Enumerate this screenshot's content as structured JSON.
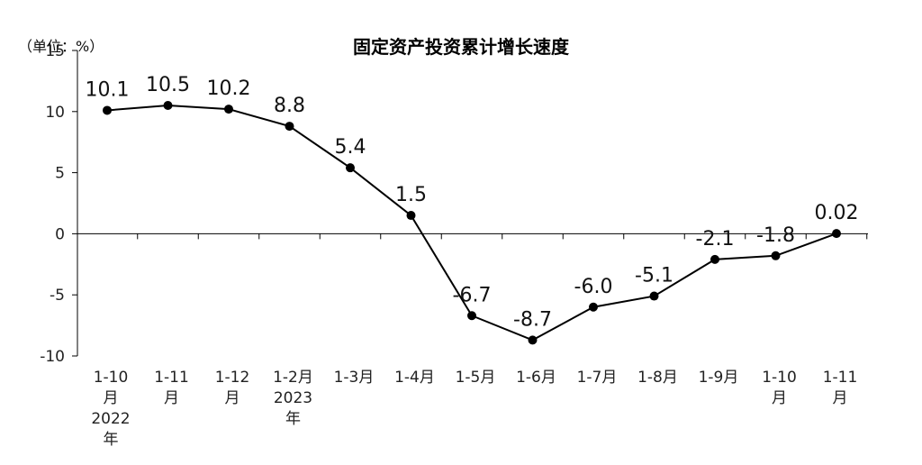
{
  "chart_data": {
    "type": "line",
    "title": "固定资产投资累计增长速度",
    "unit_label": "（单位：%）",
    "xlabel": "",
    "ylabel": "",
    "ylim": [
      -10,
      15
    ],
    "yticks": [
      "15",
      "10",
      "5",
      "0",
      "-5",
      "-10"
    ],
    "ytick_values": [
      15,
      10,
      5,
      0,
      -5,
      -10
    ],
    "grid": false,
    "categories": [
      [
        "1-10",
        "月",
        "2022",
        "年"
      ],
      [
        "1-11",
        "月"
      ],
      [
        "1-12",
        "月"
      ],
      [
        "1-2月",
        "2023",
        "年"
      ],
      [
        "1-3月"
      ],
      [
        "1-4月"
      ],
      [
        "1-5月"
      ],
      [
        "1-6月"
      ],
      [
        "1-7月"
      ],
      [
        "1-8月"
      ],
      [
        "1-9月"
      ],
      [
        "1-10",
        "月"
      ],
      [
        "1-11",
        "月"
      ]
    ],
    "values": [
      10.1,
      10.5,
      10.2,
      8.8,
      5.4,
      1.5,
      -6.7,
      -8.7,
      -6.0,
      -5.1,
      -2.1,
      -1.8,
      0.02
    ],
    "data_labels": [
      "10.1",
      "10.5",
      "10.2",
      "8.8",
      "5.4",
      "1.5",
      "-6.7",
      "-8.7",
      "-6.0",
      "-5.1",
      "-2.1",
      "-1.8",
      "0.02"
    ],
    "line_color": "#000000",
    "marker_color": "#000000"
  }
}
